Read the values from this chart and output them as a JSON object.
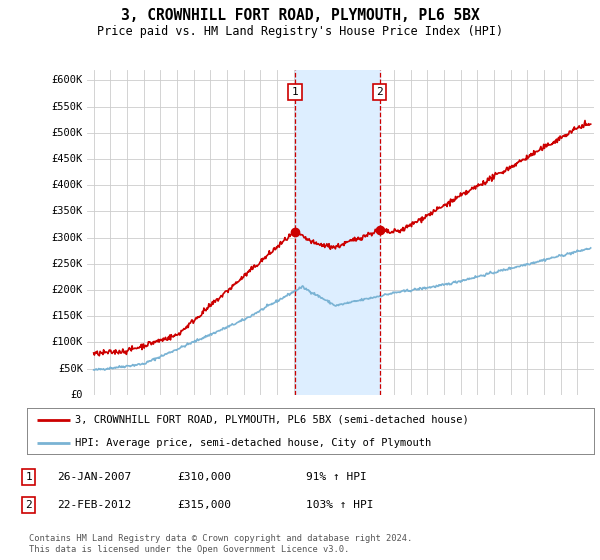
{
  "title": "3, CROWNHILL FORT ROAD, PLYMOUTH, PL6 5BX",
  "subtitle": "Price paid vs. HM Land Registry's House Price Index (HPI)",
  "ylim": [
    0,
    620000
  ],
  "yticks": [
    0,
    50000,
    100000,
    150000,
    200000,
    250000,
    300000,
    350000,
    400000,
    450000,
    500000,
    550000,
    600000
  ],
  "ytick_labels": [
    "£0",
    "£50K",
    "£100K",
    "£150K",
    "£200K",
    "£250K",
    "£300K",
    "£350K",
    "£400K",
    "£450K",
    "£500K",
    "£550K",
    "£600K"
  ],
  "sale1_date": 2007.07,
  "sale1_price": 310000,
  "sale1_label": "1",
  "sale2_date": 2012.14,
  "sale2_price": 315000,
  "sale2_label": "2",
  "shade_start": 2007.07,
  "shade_end": 2012.14,
  "legend_line1": "3, CROWNHILL FORT ROAD, PLYMOUTH, PL6 5BX (semi-detached house)",
  "legend_line2": "HPI: Average price, semi-detached house, City of Plymouth",
  "table_row1": [
    "1",
    "26-JAN-2007",
    "£310,000",
    "91% ↑ HPI"
  ],
  "table_row2": [
    "2",
    "22-FEB-2012",
    "£315,000",
    "103% ↑ HPI"
  ],
  "footer1": "Contains HM Land Registry data © Crown copyright and database right 2024.",
  "footer2": "This data is licensed under the Open Government Licence v3.0.",
  "red_color": "#cc0000",
  "blue_color": "#7ab3d4",
  "shade_color": "#ddeeff",
  "grid_color": "#cccccc",
  "background_color": "#ffffff",
  "xlim_start": 1994.6,
  "xlim_end": 2025.0
}
